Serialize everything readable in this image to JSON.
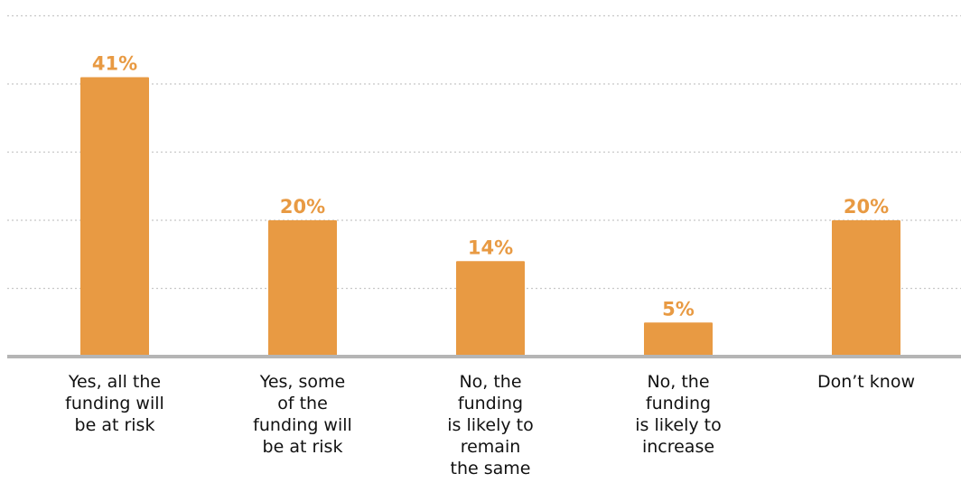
{
  "chart_data": {
    "type": "bar",
    "categories": [
      "Yes, all the funding will be at risk",
      "Yes, some of the funding will be at risk",
      "No, the funding is likely to remain the same",
      "No, the funding is likely to increase",
      "Don’t know"
    ],
    "category_lines": [
      [
        "Yes, all the",
        "funding will",
        "be at risk"
      ],
      [
        "Yes, some",
        "of the",
        "funding will",
        "be at risk"
      ],
      [
        "No, the",
        "funding",
        "is likely to",
        "remain",
        "the same"
      ],
      [
        "No, the",
        "funding",
        "is likely to",
        "increase"
      ],
      [
        "Don’t know"
      ]
    ],
    "values": [
      41,
      20,
      14,
      5,
      20
    ],
    "value_labels": [
      "41%",
      "20%",
      "14%",
      "5%",
      "20%"
    ],
    "title": "",
    "xlabel": "",
    "ylabel": "",
    "ylim": [
      0,
      50
    ],
    "grid": true,
    "legend": "none",
    "colors": {
      "bar": "#e89a43",
      "value_label": "#e89a43",
      "grid": "#c8c8c8",
      "baseline": "#b5b5b5",
      "text": "#111111"
    }
  }
}
